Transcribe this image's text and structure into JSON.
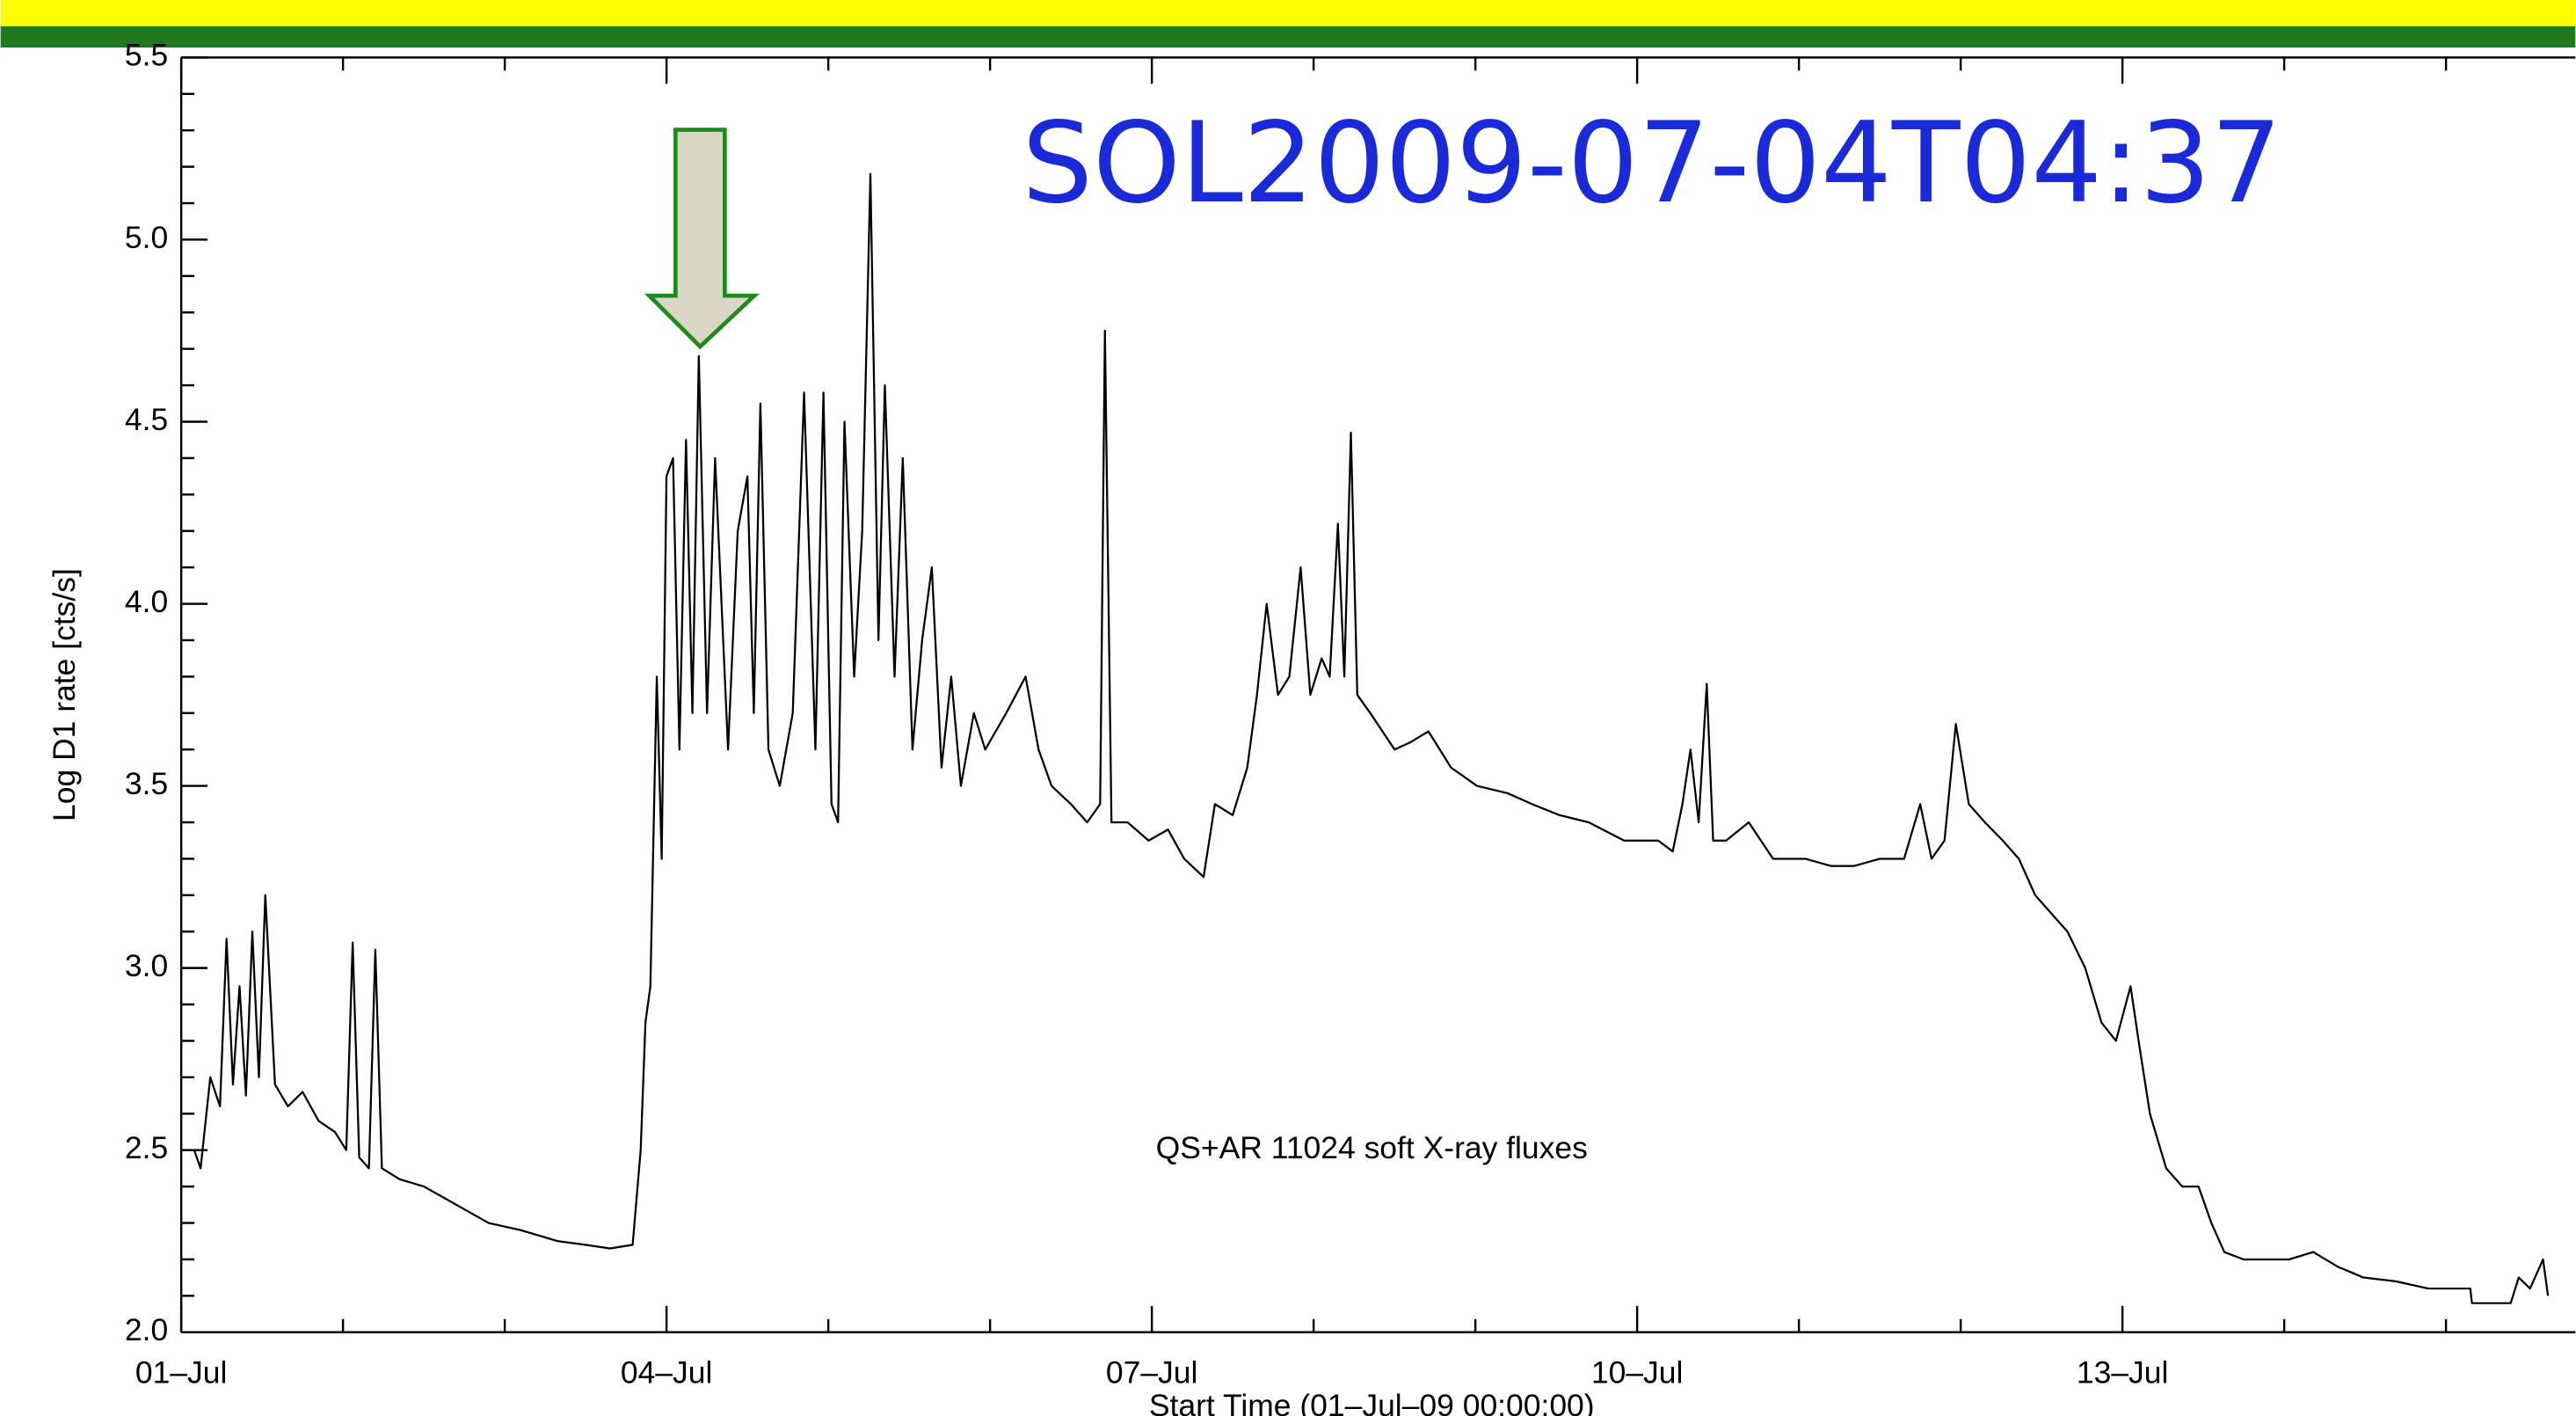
{
  "chart_data": {
    "type": "line",
    "annotation": "SOL2009-07-04T04:37",
    "note": "QS+AR 11024 soft X-ray fluxes",
    "y_label": "Log D1 rate [cts/s]",
    "x_label": "Start Time (01–Jul–09 00:00:00)",
    "color": "#000000",
    "xlim": [
      0,
      14.8
    ],
    "ylim": [
      2.0,
      5.5
    ],
    "xticks": [
      {
        "value": 0,
        "label": "01–Jul"
      },
      {
        "value": 3,
        "label": "04–Jul"
      },
      {
        "value": 6,
        "label": "07–Jul"
      },
      {
        "value": 9,
        "label": "10–Jul"
      },
      {
        "value": 12,
        "label": "13–Jul"
      }
    ],
    "xminorticks": [
      1,
      2,
      4,
      5,
      7,
      8,
      10,
      11,
      13,
      14
    ],
    "yticks": [
      {
        "value": 2.0,
        "label": "2.0"
      },
      {
        "value": 2.5,
        "label": "2.5"
      },
      {
        "value": 3.0,
        "label": "3.0"
      },
      {
        "value": 3.5,
        "label": "3.5"
      },
      {
        "value": 4.0,
        "label": "4.0"
      },
      {
        "value": 4.5,
        "label": "4.5"
      },
      {
        "value": 5.0,
        "label": "5.0"
      },
      {
        "value": 5.5,
        "label": "5.5"
      }
    ],
    "yminorticks": [
      2.1,
      2.2,
      2.3,
      2.4,
      2.6,
      2.7,
      2.8,
      2.9,
      3.1,
      3.2,
      3.3,
      3.4,
      3.6,
      3.7,
      3.8,
      3.9,
      4.1,
      4.2,
      4.3,
      4.4,
      4.6,
      4.7,
      4.8,
      4.9,
      5.1,
      5.2,
      5.3,
      5.4
    ],
    "x": [
      0.08,
      0.12,
      0.18,
      0.24,
      0.28,
      0.32,
      0.36,
      0.4,
      0.44,
      0.48,
      0.52,
      0.58,
      0.66,
      0.75,
      0.85,
      0.95,
      1.02,
      1.06,
      1.1,
      1.16,
      1.2,
      1.24,
      1.35,
      1.5,
      1.7,
      1.9,
      2.1,
      2.33,
      2.5,
      2.65,
      2.79,
      2.84,
      2.87,
      2.9,
      2.94,
      2.97,
      3.0,
      3.04,
      3.08,
      3.12,
      3.16,
      3.2,
      3.25,
      3.3,
      3.38,
      3.44,
      3.5,
      3.54,
      3.58,
      3.63,
      3.7,
      3.78,
      3.85,
      3.92,
      3.97,
      4.02,
      4.06,
      4.1,
      4.16,
      4.21,
      4.26,
      4.31,
      4.35,
      4.41,
      4.46,
      4.52,
      4.58,
      4.64,
      4.7,
      4.76,
      4.82,
      4.9,
      4.97,
      5.1,
      5.22,
      5.3,
      5.38,
      5.5,
      5.6,
      5.68,
      5.71,
      5.75,
      5.85,
      5.98,
      6.1,
      6.2,
      6.32,
      6.39,
      6.5,
      6.59,
      6.65,
      6.71,
      6.78,
      6.85,
      6.92,
      6.98,
      7.05,
      7.1,
      7.15,
      7.19,
      7.23,
      7.27,
      7.35,
      7.5,
      7.6,
      7.71,
      7.85,
      8.01,
      8.2,
      8.35,
      8.52,
      8.7,
      8.92,
      9.13,
      9.22,
      9.28,
      9.33,
      9.38,
      9.43,
      9.47,
      9.55,
      9.69,
      9.84,
      10.04,
      10.2,
      10.34,
      10.5,
      10.65,
      10.75,
      10.82,
      10.9,
      10.97,
      11.05,
      11.15,
      11.26,
      11.36,
      11.46,
      11.56,
      11.66,
      11.77,
      11.87,
      11.96,
      12.05,
      12.1,
      12.17,
      12.27,
      12.37,
      12.47,
      12.55,
      12.63,
      12.75,
      12.88,
      13.03,
      13.18,
      13.33,
      13.49,
      13.69,
      13.89,
      13.95,
      14.15,
      14.16,
      14.4,
      14.45,
      14.52,
      14.6,
      14.63
    ],
    "values": [
      2.5,
      2.45,
      2.7,
      2.62,
      3.08,
      2.68,
      2.95,
      2.65,
      3.1,
      2.7,
      3.2,
      2.68,
      2.62,
      2.66,
      2.58,
      2.55,
      2.5,
      3.07,
      2.48,
      2.45,
      3.05,
      2.45,
      2.42,
      2.4,
      2.35,
      2.3,
      2.28,
      2.25,
      2.24,
      2.23,
      2.24,
      2.5,
      2.85,
      2.95,
      3.8,
      3.3,
      4.35,
      4.4,
      3.6,
      4.45,
      3.7,
      4.68,
      3.7,
      4.4,
      3.6,
      4.2,
      4.35,
      3.7,
      4.55,
      3.6,
      3.5,
      3.7,
      4.58,
      3.6,
      4.58,
      3.45,
      3.4,
      4.5,
      3.8,
      4.2,
      5.18,
      3.9,
      4.6,
      3.8,
      4.4,
      3.6,
      3.9,
      4.1,
      3.55,
      3.8,
      3.5,
      3.7,
      3.6,
      3.7,
      3.8,
      3.6,
      3.5,
      3.45,
      3.4,
      3.45,
      4.75,
      3.4,
      3.4,
      3.35,
      3.38,
      3.3,
      3.25,
      3.45,
      3.42,
      3.55,
      3.75,
      4.0,
      3.75,
      3.8,
      4.1,
      3.75,
      3.85,
      3.8,
      4.22,
      3.8,
      4.47,
      3.75,
      3.7,
      3.6,
      3.62,
      3.65,
      3.55,
      3.5,
      3.48,
      3.45,
      3.42,
      3.4,
      3.35,
      3.35,
      3.32,
      3.45,
      3.6,
      3.4,
      3.78,
      3.35,
      3.35,
      3.4,
      3.3,
      3.3,
      3.28,
      3.28,
      3.3,
      3.3,
      3.45,
      3.3,
      3.35,
      3.67,
      3.45,
      3.4,
      3.35,
      3.3,
      3.2,
      3.15,
      3.1,
      3.0,
      2.85,
      2.8,
      2.95,
      2.8,
      2.6,
      2.45,
      2.4,
      2.4,
      2.3,
      2.22,
      2.2,
      2.2,
      2.2,
      2.22,
      2.18,
      2.15,
      2.14,
      2.12,
      2.12,
      2.12,
      2.08,
      2.08,
      2.15,
      2.12,
      2.2,
      2.1
    ]
  }
}
